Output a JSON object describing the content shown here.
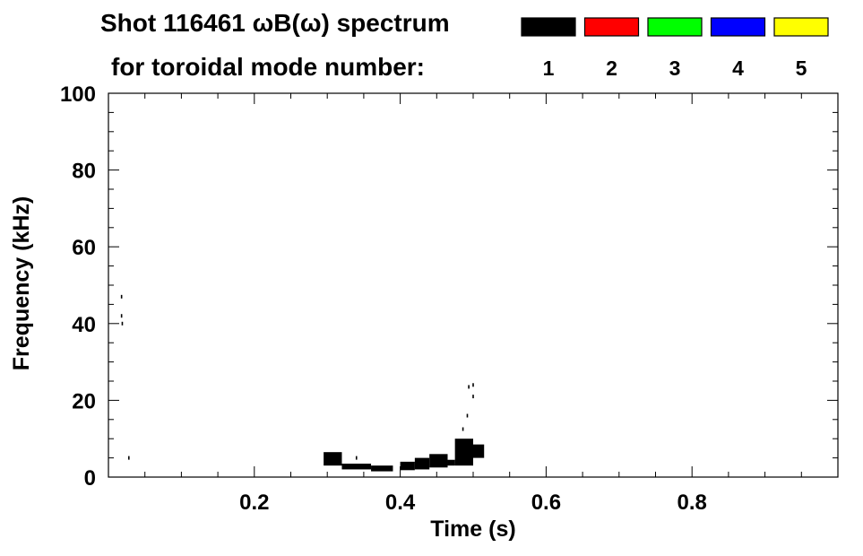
{
  "chart_data": {
    "type": "heatmap",
    "title_line1": "Shot 116461 ωB(ω) spectrum",
    "title_line2": "for toroidal mode number:",
    "legend": [
      {
        "label": "1",
        "color": "#000000"
      },
      {
        "label": "2",
        "color": "#ff0000"
      },
      {
        "label": "3",
        "color": "#00ff00"
      },
      {
        "label": "4",
        "color": "#0000ff"
      },
      {
        "label": "5",
        "color": "#ffff00"
      }
    ],
    "xlabel": "Time (s)",
    "ylabel": "Frequency (kHz)",
    "xlim": [
      0.0,
      1.0
    ],
    "ylim": [
      0,
      100
    ],
    "x_ticks": [
      0.2,
      0.4,
      0.6,
      0.8
    ],
    "x_tick_labels": [
      "0.2",
      "0.4",
      "0.6",
      "0.8"
    ],
    "y_ticks": [
      0,
      20,
      40,
      60,
      80,
      100
    ],
    "y_tick_labels": [
      "0",
      "20",
      "40",
      "60",
      "80",
      "100"
    ],
    "series": [
      {
        "name": "1",
        "color": "#000000",
        "segments": [
          {
            "t_start": 0.295,
            "t_end": 0.32,
            "f_low": 3.0,
            "f_high": 6.5
          },
          {
            "t_start": 0.32,
            "t_end": 0.36,
            "f_low": 2.0,
            "f_high": 3.5
          },
          {
            "t_start": 0.36,
            "t_end": 0.39,
            "f_low": 1.5,
            "f_high": 3.0
          },
          {
            "t_start": 0.4,
            "t_end": 0.42,
            "f_low": 1.8,
            "f_high": 4.0
          },
          {
            "t_start": 0.42,
            "t_end": 0.44,
            "f_low": 2.0,
            "f_high": 5.0
          },
          {
            "t_start": 0.44,
            "t_end": 0.465,
            "f_low": 2.5,
            "f_high": 6.0
          },
          {
            "t_start": 0.465,
            "t_end": 0.475,
            "f_low": 3.0,
            "f_high": 4.5
          },
          {
            "t_start": 0.475,
            "t_end": 0.5,
            "f_low": 3.0,
            "f_high": 10.0
          },
          {
            "t_start": 0.5,
            "t_end": 0.515,
            "f_low": 5.0,
            "f_high": 8.5
          }
        ],
        "points": [
          {
            "t": 0.018,
            "f": 47.0
          },
          {
            "t": 0.018,
            "f": 42.0
          },
          {
            "t": 0.019,
            "f": 40.0
          },
          {
            "t": 0.028,
            "f": 5.0
          },
          {
            "t": 0.34,
            "f": 5.0
          },
          {
            "t": 0.486,
            "f": 12.5
          },
          {
            "t": 0.492,
            "f": 16.0
          },
          {
            "t": 0.494,
            "f": 23.5
          },
          {
            "t": 0.5,
            "f": 24.0
          },
          {
            "t": 0.5,
            "f": 21.0
          }
        ]
      }
    ]
  }
}
